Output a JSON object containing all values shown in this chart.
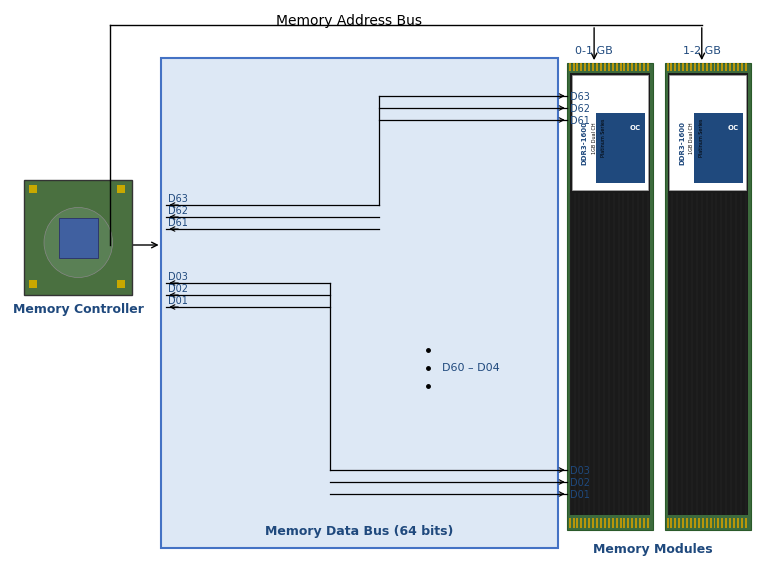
{
  "title": "Memory Address Bus",
  "bg_color": "#dde8f5",
  "box_border_color": "#4472c4",
  "label_color": "#1f497d",
  "signal_color": "#000000",
  "bus_labels_top_right": [
    "D63",
    "D62",
    "D61"
  ],
  "bus_labels_bottom_right": [
    "D03",
    "D02",
    "D01"
  ],
  "bus_labels_left_top": [
    "D63",
    "D62",
    "D61"
  ],
  "bus_labels_left_bottom": [
    "D03",
    "D02",
    "D01"
  ],
  "middle_label": "D60 – D04",
  "bottom_box_label": "Memory Data Bus (64 bits)",
  "mem_controller_label": "Memory Controller",
  "mem_modules_label": "Memory Modules",
  "label_0_1": "0-1 GB",
  "label_1_2": "1-2 GB",
  "font_size_title": 10,
  "font_size_label": 9,
  "font_size_small": 8,
  "bx0": 148,
  "by0": 58,
  "bx1": 553,
  "by1": 548
}
